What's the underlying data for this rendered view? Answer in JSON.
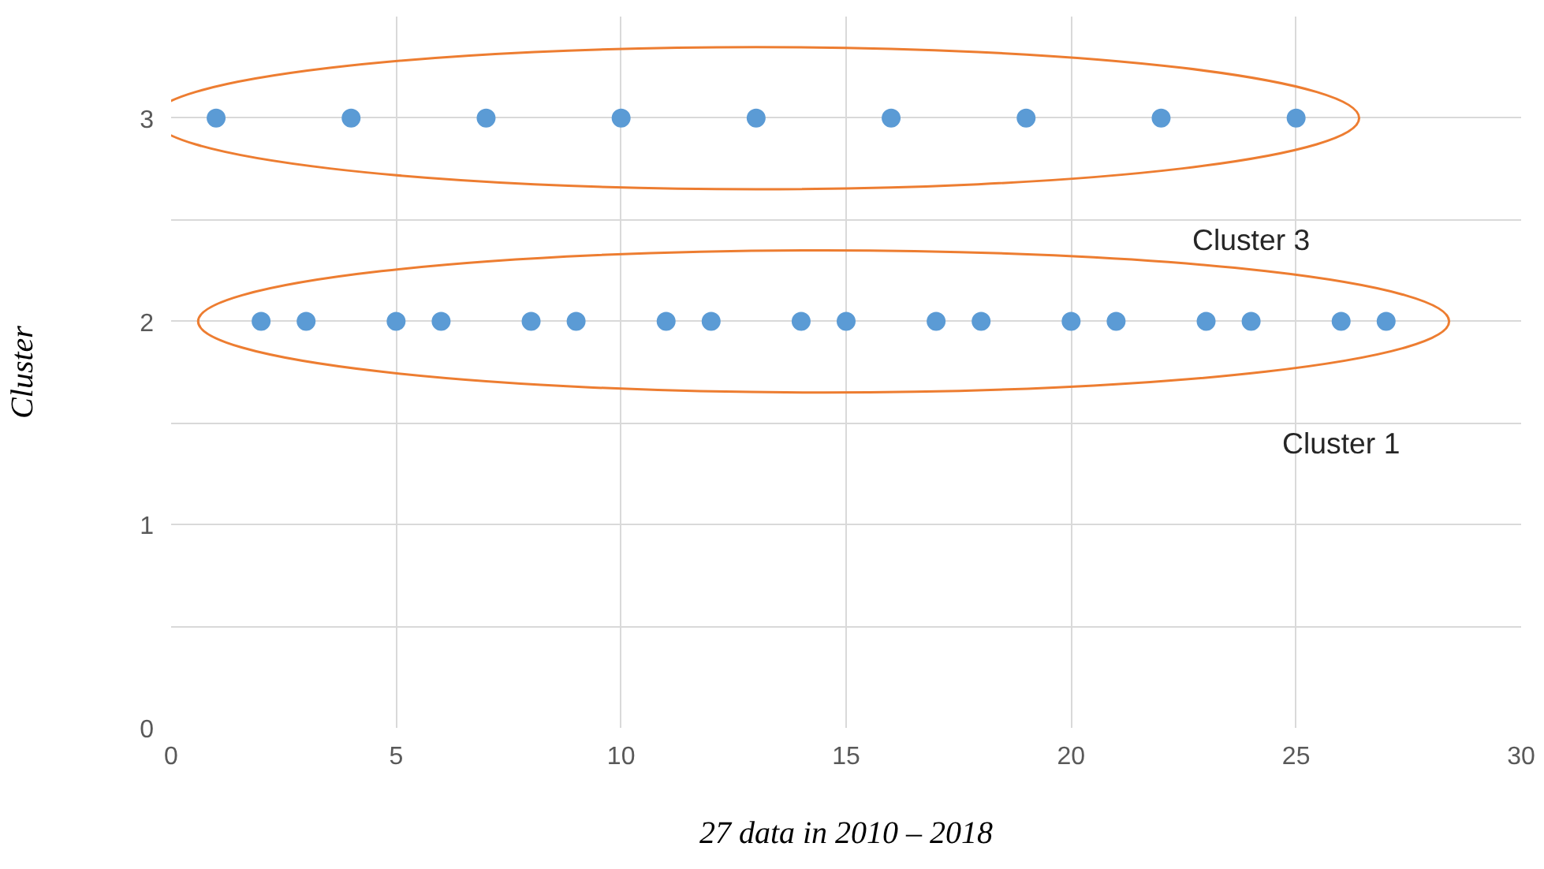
{
  "chart_data": {
    "type": "scatter",
    "xlabel": "27 data in 2010 – 2018",
    "ylabel": "Cluster",
    "xlim": [
      0,
      30
    ],
    "xticks": [
      0,
      5,
      10,
      15,
      20,
      25,
      30
    ],
    "ylim": [
      0,
      3.5
    ],
    "yticks": [
      0,
      {
        "value": 0.5,
        "label": null
      },
      1,
      {
        "value": 1.5,
        "label": null
      },
      2,
      {
        "value": 2.5,
        "label": null
      },
      3
    ],
    "grid": true,
    "marker": "circle",
    "series": [
      {
        "color": "#5b9bd5",
        "x": [
          1,
          4,
          7,
          10,
          13,
          16,
          19,
          22,
          25
        ],
        "values": [
          3,
          3,
          3,
          3,
          3,
          3,
          3,
          3,
          3
        ]
      },
      {
        "color": "#5b9bd5",
        "x": [
          2,
          3,
          5,
          6,
          8,
          9,
          11,
          12,
          14,
          15,
          17,
          18,
          20,
          21,
          23,
          24,
          26,
          27
        ],
        "values": [
          2,
          2,
          2,
          2,
          2,
          2,
          2,
          2,
          2,
          2,
          2,
          2,
          2,
          2,
          2,
          2,
          2,
          2
        ]
      }
    ],
    "annotations": [
      "Cluster 3",
      "Cluster 1"
    ]
  }
}
